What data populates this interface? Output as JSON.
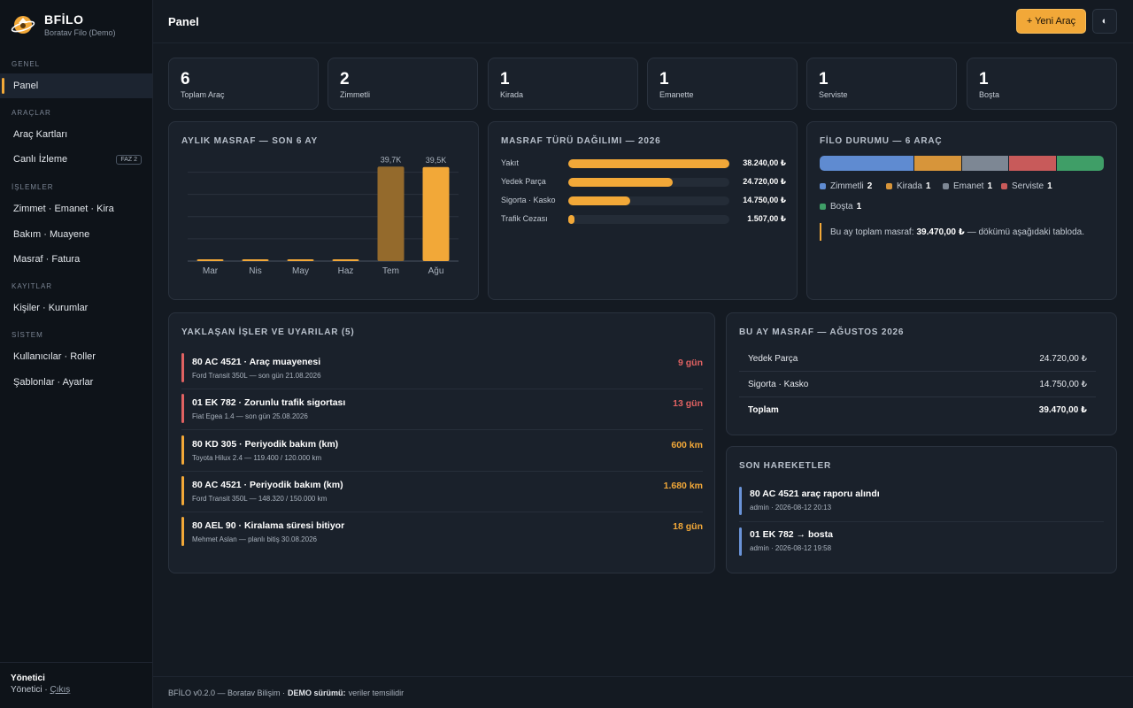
{
  "brand": {
    "name": "BFİLO",
    "subtitle": "Boratav Filo (Demo)"
  },
  "nav": {
    "sections": [
      {
        "label": "GENEL",
        "items": [
          {
            "label": "Panel",
            "active": true
          }
        ]
      },
      {
        "label": "ARAÇLAR",
        "items": [
          {
            "label": "Araç Kartları"
          },
          {
            "label": "Canlı İzleme",
            "badge": "FAZ 2"
          }
        ]
      },
      {
        "label": "İŞLEMLER",
        "items": [
          {
            "label": "Zimmet · Emanet · Kira"
          },
          {
            "label": "Bakım · Muayene"
          },
          {
            "label": "Masraf · Fatura"
          }
        ]
      },
      {
        "label": "KAYITLAR",
        "items": [
          {
            "label": "Kişiler · Kurumlar"
          }
        ]
      },
      {
        "label": "SİSTEM",
        "items": [
          {
            "label": "Kullanıcılar · Roller"
          },
          {
            "label": "Şablonlar · Ayarlar"
          }
        ]
      }
    ]
  },
  "user": {
    "name": "Yönetici",
    "role": "Yönetici",
    "separator": " · ",
    "logout": "Çıkış"
  },
  "header": {
    "title": "Panel",
    "new_button": "+ Yeni Araç",
    "theme_icon": "◐"
  },
  "stats": [
    {
      "value": "6",
      "label": "Toplam Araç"
    },
    {
      "value": "2",
      "label": "Zimmetli"
    },
    {
      "value": "1",
      "label": "Kirada"
    },
    {
      "value": "1",
      "label": "Emanette"
    },
    {
      "value": "1",
      "label": "Serviste"
    },
    {
      "value": "1",
      "label": "Boşta"
    }
  ],
  "monthly_chart": {
    "title": "AYLIK MASRAF — SON 6 AY",
    "chart_data": {
      "type": "bar",
      "categories": [
        "Mar",
        "Nis",
        "May",
        "Haz",
        "Tem",
        "Ağu"
      ],
      "values": [
        0,
        0,
        0,
        0,
        39.7,
        39.5
      ],
      "value_labels": [
        "",
        "",
        "",
        "",
        "39,7K",
        "39,5K"
      ],
      "ylim": [
        0,
        45
      ],
      "grid": true,
      "colors": [
        "#f2a838",
        "#f2a838",
        "#f2a838",
        "#f2a838",
        "#946a2c",
        "#f2a838"
      ]
    }
  },
  "expense_types": {
    "title": "MASRAF TÜRÜ DAĞILIMI — 2026",
    "max": 38240,
    "items": [
      {
        "label": "Yakıt",
        "value": 38240,
        "display": "38.240,00 ₺"
      },
      {
        "label": "Yedek Parça",
        "value": 24720,
        "display": "24.720,00 ₺"
      },
      {
        "label": "Sigorta · Kasko",
        "value": 14750,
        "display": "14.750,00 ₺"
      },
      {
        "label": "Trafik Cezası",
        "value": 1507,
        "display": "1.507,00 ₺"
      }
    ]
  },
  "fleet_status": {
    "title": "FİLO DURUMU — 6 ARAÇ",
    "items": [
      {
        "label": "Zimmetli",
        "count": "2",
        "color": "#5f8bd1"
      },
      {
        "label": "Kirada",
        "count": "1",
        "color": "#d7953a"
      },
      {
        "label": "Emanet",
        "count": "1",
        "color": "#7d8794"
      },
      {
        "label": "Serviste",
        "count": "1",
        "color": "#c85a5a"
      },
      {
        "label": "Boşta",
        "count": "1",
        "color": "#3f9e67"
      }
    ],
    "note_prefix": "Bu ay toplam masraf:",
    "note_amount": "39.470,00 ₺",
    "note_suffix": "— dökümü aşağıdaki tabloda."
  },
  "alerts": {
    "title": "YAKLAŞAN İŞLER VE UYARILAR (5)",
    "items": [
      {
        "title": "80 AC 4521 · Araç muayenesi",
        "sub": "Ford Transit 350L — son gün 21.08.2026",
        "value": "9 gün",
        "color": "#e06262"
      },
      {
        "title": "01 EK 782 · Zorunlu trafik sigortası",
        "sub": "Fiat Egea 1.4 — son gün 25.08.2026",
        "value": "13 gün",
        "color": "#e06262"
      },
      {
        "title": "80 KD 305 · Periyodik bakım (km)",
        "sub": "Toyota Hilux 2.4 — 119.400 / 120.000 km",
        "value": "600 km",
        "color": "#f2a838"
      },
      {
        "title": "80 AC 4521 · Periyodik bakım (km)",
        "sub": "Ford Transit 350L — 148.320 / 150.000 km",
        "value": "1.680 km",
        "color": "#f2a838"
      },
      {
        "title": "80 AEL 90 · Kiralama süresi bitiyor",
        "sub": "Mehmet Aslan — planlı bitiş 30.08.2026",
        "value": "18 gün",
        "color": "#f2a838"
      }
    ]
  },
  "month_expense": {
    "title": "BU AY MASRAF — AĞUSTOS 2026",
    "rows": [
      {
        "label": "Yedek Parça",
        "value": "24.720,00 ₺"
      },
      {
        "label": "Sigorta · Kasko",
        "value": "14.750,00 ₺"
      }
    ],
    "total": {
      "label": "Toplam",
      "value": "39.470,00 ₺"
    }
  },
  "activity": {
    "title": "SON HAREKETLER",
    "items": [
      {
        "title": "80 AC 4521 araç raporu alındı",
        "sub": "admin · 2026-08-12 20:13"
      },
      {
        "title": "01 EK 782 → bosta",
        "sub": "admin · 2026-08-12 19:58"
      }
    ]
  },
  "footer": {
    "prefix": "BFİLO v0.2.0 — Boratav Bilişim ·",
    "demo": "DEMO sürümü:",
    "suffix": "veriler temsilidir"
  }
}
